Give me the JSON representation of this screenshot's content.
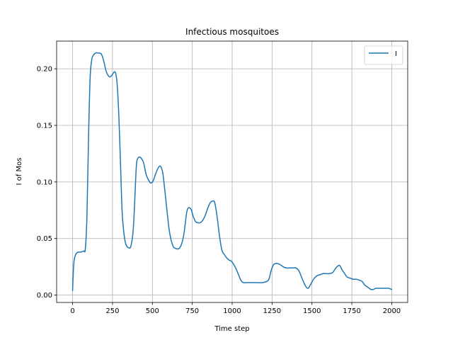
{
  "chart_data": {
    "type": "line",
    "title": "Infectious mosquitoes",
    "xlabel": "Time step",
    "ylabel": "I of Mos",
    "xlim": [
      -100,
      2100
    ],
    "ylim": [
      -0.0065,
      0.2245
    ],
    "xticks": [
      0,
      250,
      500,
      750,
      1000,
      1250,
      1500,
      1750,
      2000
    ],
    "yticks": [
      0.0,
      0.05,
      0.1,
      0.15,
      0.2
    ],
    "xtick_labels": [
      "0",
      "250",
      "500",
      "750",
      "1000",
      "1250",
      "1500",
      "1750",
      "2000"
    ],
    "ytick_labels": [
      "0.00",
      "0.05",
      "0.10",
      "0.15",
      "0.20"
    ],
    "grid": true,
    "legend_position": "top-right",
    "series": [
      {
        "name": "I",
        "color": "#1f77b4",
        "x": [
          0,
          5,
          10,
          20,
          35,
          50,
          70,
          80,
          90,
          100,
          110,
          120,
          130,
          145,
          160,
          180,
          195,
          210,
          230,
          245,
          260,
          270,
          280,
          290,
          300,
          310,
          320,
          330,
          340,
          350,
          365,
          380,
          390,
          400,
          410,
          420,
          430,
          445,
          460,
          475,
          490,
          505,
          520,
          535,
          550,
          565,
          580,
          595,
          605,
          615,
          625,
          635,
          650,
          665,
          680,
          695,
          705,
          715,
          725,
          735,
          745,
          755,
          770,
          785,
          800,
          815,
          830,
          845,
          860,
          875,
          890,
          905,
          920,
          935,
          950,
          965,
          980,
          995,
          1010,
          1025,
          1040,
          1055,
          1070,
          1085,
          1100,
          1130,
          1160,
          1190,
          1215,
          1230,
          1245,
          1260,
          1280,
          1300,
          1320,
          1340,
          1360,
          1380,
          1400,
          1420,
          1440,
          1460,
          1475,
          1490,
          1510,
          1530,
          1550,
          1570,
          1590,
          1610,
          1630,
          1650,
          1665,
          1675,
          1690,
          1705,
          1720,
          1740,
          1760,
          1780,
          1800,
          1815,
          1830,
          1850,
          1870,
          1885,
          1900,
          1920,
          1940,
          1960,
          1980,
          2000
        ],
        "y": [
          0.004,
          0.022,
          0.031,
          0.036,
          0.038,
          0.038,
          0.039,
          0.041,
          0.07,
          0.14,
          0.192,
          0.208,
          0.212,
          0.214,
          0.214,
          0.213,
          0.207,
          0.198,
          0.193,
          0.194,
          0.197,
          0.196,
          0.185,
          0.158,
          0.118,
          0.075,
          0.057,
          0.047,
          0.043,
          0.042,
          0.043,
          0.058,
          0.085,
          0.115,
          0.121,
          0.122,
          0.121,
          0.117,
          0.107,
          0.102,
          0.099,
          0.101,
          0.107,
          0.112,
          0.114,
          0.108,
          0.09,
          0.07,
          0.058,
          0.05,
          0.045,
          0.042,
          0.041,
          0.041,
          0.044,
          0.052,
          0.062,
          0.073,
          0.077,
          0.077,
          0.075,
          0.07,
          0.065,
          0.064,
          0.064,
          0.066,
          0.07,
          0.076,
          0.081,
          0.083,
          0.082,
          0.07,
          0.053,
          0.04,
          0.036,
          0.033,
          0.031,
          0.03,
          0.027,
          0.023,
          0.018,
          0.013,
          0.011,
          0.011,
          0.011,
          0.011,
          0.011,
          0.011,
          0.012,
          0.014,
          0.022,
          0.027,
          0.028,
          0.027,
          0.025,
          0.024,
          0.024,
          0.024,
          0.024,
          0.021,
          0.014,
          0.008,
          0.006,
          0.009,
          0.014,
          0.017,
          0.018,
          0.019,
          0.019,
          0.019,
          0.02,
          0.024,
          0.026,
          0.026,
          0.022,
          0.019,
          0.016,
          0.015,
          0.014,
          0.014,
          0.013,
          0.012,
          0.009,
          0.007,
          0.005,
          0.005,
          0.006,
          0.006,
          0.006,
          0.006,
          0.006,
          0.005
        ]
      }
    ]
  }
}
